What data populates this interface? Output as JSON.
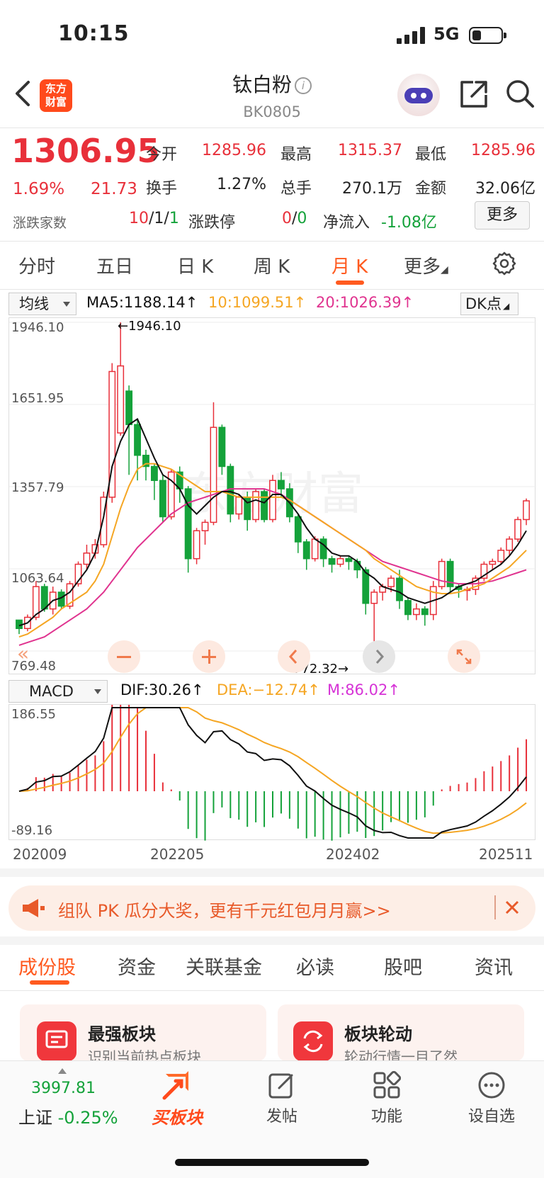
{
  "status_bar": {
    "time": "10:15",
    "network": "5G"
  },
  "header": {
    "logo_text": "东方\n财富",
    "title": "钛白粉",
    "code": "BK0805"
  },
  "quote": {
    "price": "1306.95",
    "change_pct": "1.69%",
    "change": "21.73",
    "open_label": "今开",
    "open": "1285.96",
    "high_label": "最高",
    "high": "1315.37",
    "low_label": "最低",
    "low": "1285.96",
    "turnover_label": "换手",
    "turnover": "1.27%",
    "volume_label": "总手",
    "volume": "270.1万",
    "amount_label": "金额",
    "amount": "32.06亿",
    "breadth_label": "涨跌家数",
    "breadth_up": "10",
    "breadth_flat": "1",
    "breadth_down": "1",
    "limit_label": "涨跌停",
    "limit_up": "0",
    "limit_down": "0",
    "netflow_label": "净流入",
    "netflow": "-1.08亿",
    "more_label": "更多"
  },
  "kline_tabs": [
    "分时",
    "五日",
    "日 K",
    "周 K",
    "月 K",
    "更多"
  ],
  "active_tab": "月 K",
  "ma_select": "均线",
  "ma": {
    "ma5": "MA5:1188.14↑",
    "ma10": "10:1099.51↑",
    "ma20": "20:1026.39↑"
  },
  "dk_label": "DK点",
  "watermark": "东方财富",
  "colors": {
    "up": "#e8303a",
    "down": "#14a23a",
    "accent": "#ff5a1f",
    "ma5": "#111111",
    "ma10": "#f5a623",
    "ma20": "#e0338f"
  },
  "chart_data": {
    "type": "candlestick",
    "yticks": [
      "1946.10",
      "1651.95",
      "1357.79",
      "1063.64",
      "769.48"
    ],
    "ylim": [
      769.48,
      1946.1
    ],
    "max_marker": "←1946.10",
    "min_marker": "772.32→",
    "candles": [
      [
        880,
        850,
        870,
        830
      ],
      [
        850,
        890,
        900,
        840
      ],
      [
        890,
        1000,
        1020,
        880
      ],
      [
        1000,
        920,
        1010,
        910
      ],
      [
        920,
        980,
        1000,
        900
      ],
      [
        980,
        930,
        990,
        920
      ],
      [
        930,
        1010,
        1020,
        920
      ],
      [
        1010,
        1080,
        1090,
        1000
      ],
      [
        1080,
        1120,
        1150,
        1060
      ],
      [
        1120,
        1150,
        1170,
        1100
      ],
      [
        1150,
        1320,
        1340,
        1140
      ],
      [
        1320,
        1770,
        1800,
        1300
      ],
      [
        1550,
        1790,
        1946.1,
        1540
      ],
      [
        1700,
        1580,
        1720,
        1400
      ],
      [
        1580,
        1470,
        1600,
        1380
      ],
      [
        1470,
        1430,
        1490,
        1380
      ],
      [
        1430,
        1380,
        1440,
        1310
      ],
      [
        1380,
        1250,
        1400,
        1230
      ],
      [
        1250,
        1410,
        1420,
        1240
      ],
      [
        1410,
        1350,
        1430,
        1300
      ],
      [
        1350,
        1100,
        1360,
        1050
      ],
      [
        1100,
        1200,
        1210,
        1080
      ],
      [
        1200,
        1230,
        1240,
        1150
      ],
      [
        1230,
        1570,
        1660,
        1220
      ],
      [
        1570,
        1430,
        1580,
        1400
      ],
      [
        1430,
        1260,
        1440,
        1230
      ],
      [
        1260,
        1320,
        1330,
        1240
      ],
      [
        1320,
        1240,
        1340,
        1200
      ],
      [
        1240,
        1340,
        1350,
        1230
      ],
      [
        1340,
        1240,
        1350,
        1230
      ],
      [
        1240,
        1380,
        1400,
        1230
      ],
      [
        1380,
        1350,
        1410,
        1320
      ],
      [
        1350,
        1250,
        1370,
        1230
      ],
      [
        1250,
        1160,
        1260,
        1120
      ],
      [
        1160,
        1100,
        1170,
        1060
      ],
      [
        1100,
        1170,
        1180,
        1090
      ],
      [
        1170,
        1100,
        1180,
        1070
      ],
      [
        1100,
        1080,
        1110,
        1050
      ],
      [
        1080,
        1100,
        1110,
        1070
      ],
      [
        1100,
        1090,
        1110,
        1060
      ],
      [
        1090,
        1060,
        1100,
        1030
      ],
      [
        1060,
        940,
        1070,
        900
      ],
      [
        940,
        980,
        990,
        772.32
      ],
      [
        980,
        1000,
        1010,
        950
      ],
      [
        1000,
        1030,
        1040,
        980
      ],
      [
        1030,
        950,
        1060,
        920
      ],
      [
        950,
        900,
        960,
        880
      ],
      [
        900,
        920,
        940,
        880
      ],
      [
        920,
        900,
        930,
        860
      ],
      [
        900,
        1000,
        1020,
        880
      ],
      [
        1000,
        1090,
        1100,
        990
      ],
      [
        1090,
        1000,
        1100,
        980
      ],
      [
        1000,
        990,
        1010,
        960
      ],
      [
        990,
        990,
        1000,
        950
      ],
      [
        990,
        1030,
        1040,
        970
      ],
      [
        1030,
        1080,
        1090,
        1020
      ],
      [
        1080,
        1090,
        1100,
        1060
      ],
      [
        1090,
        1130,
        1140,
        1080
      ],
      [
        1130,
        1170,
        1180,
        1110
      ],
      [
        1170,
        1240,
        1250,
        1160
      ],
      [
        1240,
        1306.95,
        1315.37,
        1220
      ]
    ],
    "ma5": [
      860,
      870,
      900,
      920,
      950,
      960,
      980,
      1020,
      1060,
      1120,
      1250,
      1430,
      1520,
      1580,
      1600,
      1530,
      1460,
      1400,
      1380,
      1350,
      1290,
      1260,
      1290,
      1320,
      1340,
      1340,
      1330,
      1300,
      1310,
      1300,
      1330,
      1330,
      1300,
      1260,
      1210,
      1170,
      1150,
      1120,
      1110,
      1110,
      1090,
      1050,
      1030,
      1000,
      990,
      980,
      960,
      950,
      940,
      950,
      960,
      980,
      1000,
      1010,
      1020,
      1040,
      1060,
      1080,
      1110,
      1150,
      1200
    ],
    "ma10": [
      820,
      830,
      850,
      870,
      890,
      920,
      940,
      960,
      980,
      1020,
      1080,
      1180,
      1280,
      1360,
      1420,
      1440,
      1440,
      1430,
      1420,
      1400,
      1380,
      1360,
      1340,
      1340,
      1340,
      1330,
      1320,
      1320,
      1320,
      1320,
      1320,
      1320,
      1310,
      1290,
      1270,
      1250,
      1230,
      1210,
      1190,
      1170,
      1150,
      1130,
      1100,
      1080,
      1060,
      1040,
      1020,
      1000,
      990,
      980,
      975,
      975,
      980,
      990,
      1000,
      1010,
      1030,
      1050,
      1070,
      1100,
      1130
    ],
    "ma20": [
      790,
      800,
      810,
      820,
      840,
      860,
      880,
      900,
      920,
      950,
      980,
      1020,
      1060,
      1100,
      1140,
      1170,
      1200,
      1230,
      1260,
      1280,
      1300,
      1310,
      1320,
      1330,
      1340,
      1350,
      1350,
      1350,
      1350,
      1350,
      1340,
      1330,
      1310,
      1290,
      1270,
      1250,
      1230,
      1210,
      1190,
      1170,
      1150,
      1130,
      1110,
      1090,
      1080,
      1070,
      1060,
      1050,
      1040,
      1030,
      1020,
      1015,
      1010,
      1010,
      1010,
      1015,
      1020,
      1030,
      1040,
      1050,
      1060
    ]
  },
  "macd": {
    "select": "MACD",
    "dif": "DIF:30.26↑",
    "dea": "DEA:−12.74↑",
    "m": "M:86.02↑",
    "yticks": [
      "186.55",
      "-89.16"
    ],
    "xticks": [
      "202009",
      "202205",
      "202402",
      "202511"
    ]
  },
  "banner": {
    "text": "组队 PK 瓜分大奖，更有千元红包月月赢>>"
  },
  "bottom_tabs": [
    "成份股",
    "资金",
    "关联基金",
    "必读",
    "股吧",
    "资讯"
  ],
  "cards": [
    {
      "title": "最强板块",
      "subtitle": "识别当前热点板块"
    },
    {
      "title": "板块轮动",
      "subtitle": "轮动行情一目了然"
    }
  ],
  "bottom_nav": {
    "index_value": "3997.81",
    "index_name": "上证",
    "index_change": "-0.25%",
    "buy_label": "买板块",
    "post_label": "发帖",
    "func_label": "功能",
    "watch_label": "设自选"
  }
}
